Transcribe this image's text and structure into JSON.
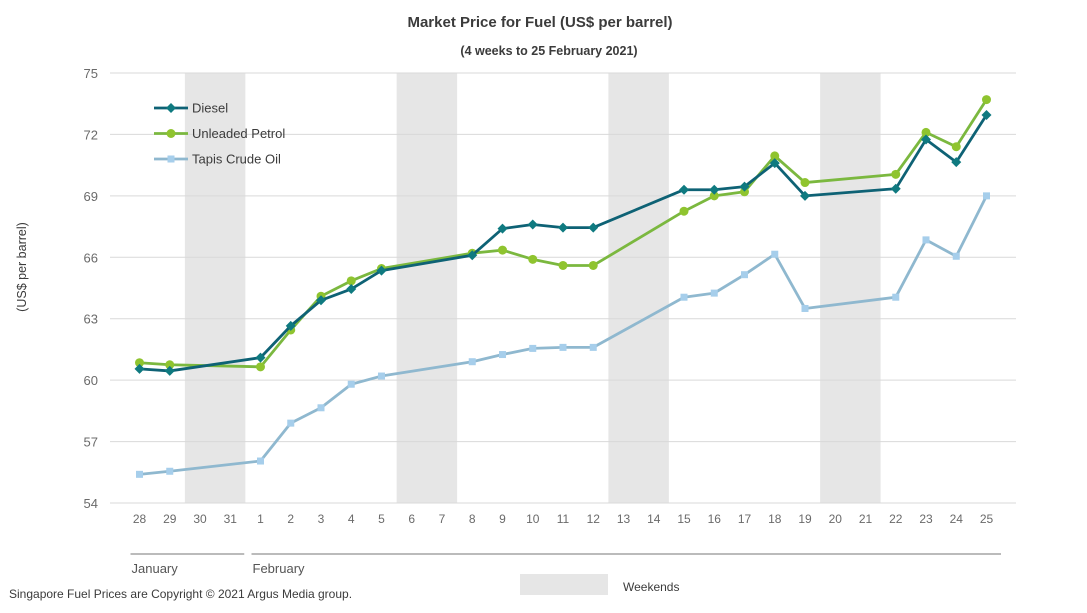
{
  "chart_data": {
    "type": "line",
    "title": "Market Price for Fuel (US$ per barrel)",
    "subtitle": "(4 weeks to 25 February 2021)",
    "ylabel": "(US$ per barrel)",
    "xlabel": "",
    "ylim": [
      54,
      75
    ],
    "yticks": [
      54,
      57,
      60,
      63,
      66,
      69,
      72,
      75
    ],
    "grid": true,
    "legend_position": "top-left",
    "categories": [
      "28",
      "29",
      "30",
      "31",
      "1",
      "2",
      "3",
      "4",
      "5",
      "6",
      "7",
      "8",
      "9",
      "10",
      "11",
      "12",
      "13",
      "14",
      "15",
      "16",
      "17",
      "18",
      "19",
      "20",
      "21",
      "22",
      "23",
      "24",
      "25"
    ],
    "months": [
      {
        "label": "January",
        "from": 0,
        "to": 3
      },
      {
        "label": "February",
        "from": 4,
        "to": 28
      }
    ],
    "weekends": [
      [
        2,
        3
      ],
      [
        9,
        10
      ],
      [
        16,
        17
      ],
      [
        23,
        24
      ]
    ],
    "weekend_label": "Weekends",
    "series": [
      {
        "name": "Diesel",
        "color": "#0e6275",
        "marker": "diamond",
        "values": [
          60.55,
          60.45,
          null,
          null,
          61.1,
          62.65,
          63.9,
          64.45,
          65.35,
          null,
          null,
          66.1,
          67.4,
          67.6,
          67.45,
          67.45,
          null,
          null,
          69.3,
          69.3,
          69.45,
          70.6,
          69.0,
          null,
          null,
          69.35,
          71.75,
          70.65,
          72.95
        ]
      },
      {
        "name": "Unleaded Petrol",
        "color": "#7bb83f",
        "marker": "circle",
        "values": [
          60.85,
          60.75,
          null,
          null,
          60.65,
          62.45,
          64.1,
          64.85,
          65.45,
          null,
          null,
          66.2,
          66.35,
          65.9,
          65.6,
          65.6,
          null,
          null,
          68.25,
          69.0,
          69.2,
          70.95,
          69.65,
          null,
          null,
          70.05,
          72.1,
          71.4,
          73.7
        ]
      },
      {
        "name": "Tapis Crude Oil",
        "color": "#8fb8cf",
        "marker": "square",
        "values": [
          55.4,
          55.55,
          null,
          null,
          56.05,
          57.9,
          58.65,
          59.8,
          60.2,
          null,
          null,
          60.9,
          61.25,
          61.55,
          61.6,
          61.6,
          null,
          null,
          64.05,
          64.25,
          65.15,
          66.15,
          63.5,
          null,
          null,
          64.05,
          66.85,
          66.05,
          69.0
        ]
      }
    ]
  },
  "footer": {
    "copyright": "Singapore Fuel Prices are Copyright © 2021 Argus Media group."
  }
}
